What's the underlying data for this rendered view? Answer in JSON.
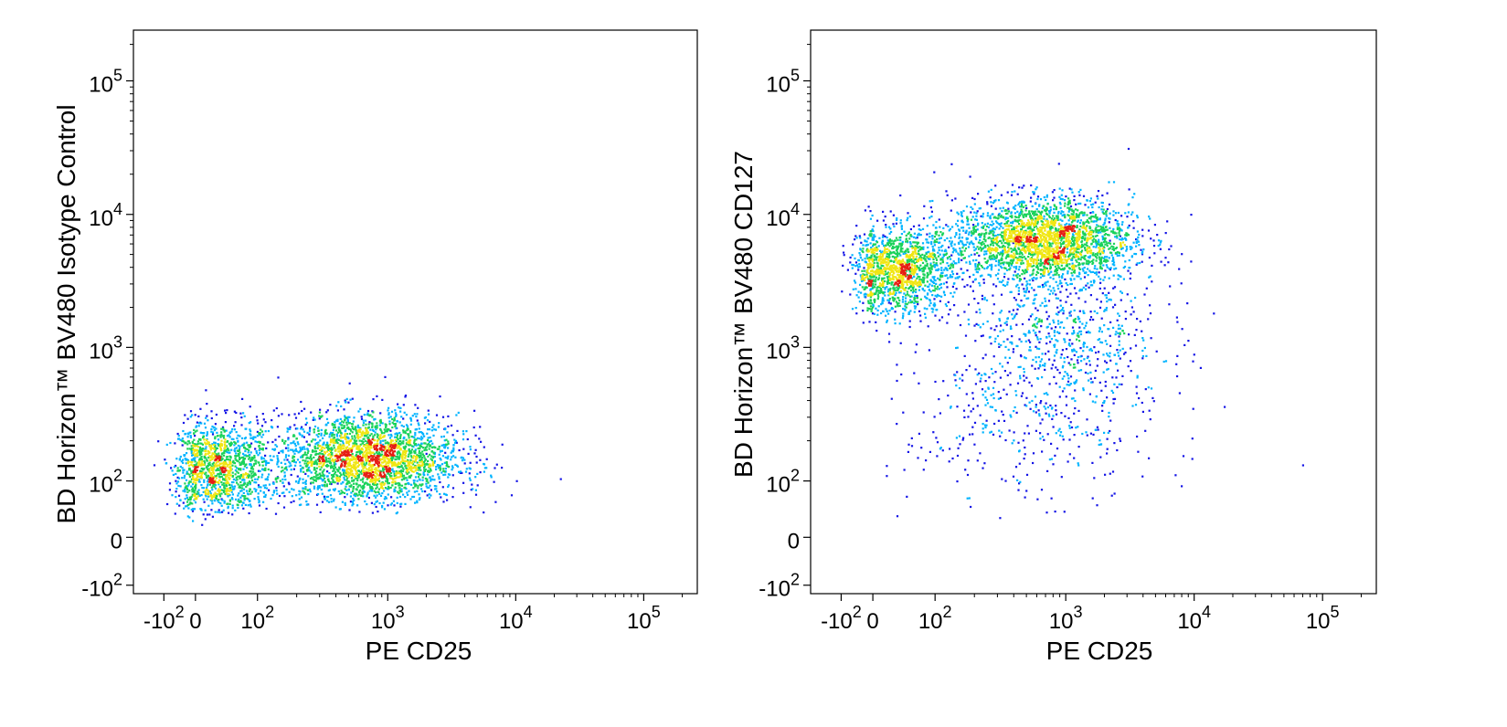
{
  "colors": {
    "density_low": "#1414e6",
    "density_mid_low": "#00b4ff",
    "density_mid": "#19d25a",
    "density_mid_high": "#f0e614",
    "density_high": "#e61e14",
    "axis": "#000000",
    "background": "#ffffff"
  },
  "chart_data": [
    {
      "type": "scatter",
      "style": "flow cytometry pseudocolor density plot",
      "xlabel": "PE  CD25",
      "ylabel": "BD Horizon™ BV480 Isotype Control",
      "x_scale": "biexponential",
      "y_scale": "biexponential",
      "xlim": [
        -200,
        262144
      ],
      "ylim": [
        -150,
        262144
      ],
      "x_ticks": [
        {
          "value": -100,
          "base": "-10",
          "exp": "2"
        },
        {
          "value": 0,
          "base": "0",
          "exp": ""
        },
        {
          "value": 100,
          "base": "10",
          "exp": "2"
        },
        {
          "value": 1000,
          "base": "10",
          "exp": "3"
        },
        {
          "value": 10000,
          "base": "10",
          "exp": "4"
        },
        {
          "value": 100000,
          "base": "10",
          "exp": "5"
        }
      ],
      "y_ticks": [
        {
          "value": -100,
          "base": "-10",
          "exp": "2"
        },
        {
          "value": 0,
          "base": "0",
          "exp": ""
        },
        {
          "value": 100,
          "base": "10",
          "exp": "2"
        },
        {
          "value": 1000,
          "base": "10",
          "exp": "3"
        },
        {
          "value": 10000,
          "base": "10",
          "exp": "4"
        },
        {
          "value": 100000,
          "base": "10",
          "exp": "5"
        }
      ],
      "populations": [
        {
          "name": "",
          "x_center": 35,
          "y_center": 125,
          "x_spread": 45,
          "y_spread": 0.18,
          "density": "high",
          "count": 1300
        },
        {
          "name": "",
          "x_center": 700,
          "y_center": 150,
          "x_spread": 0.35,
          "y_spread": 0.17,
          "density": "high",
          "count": 2600
        }
      ],
      "grid": false,
      "legend": "none"
    },
    {
      "type": "scatter",
      "style": "flow cytometry pseudocolor density plot",
      "xlabel": "PE  CD25",
      "ylabel": "BD Horizon™ BV480 CD127",
      "x_scale": "biexponential",
      "y_scale": "biexponential",
      "xlim": [
        -200,
        262144
      ],
      "ylim": [
        -150,
        262144
      ],
      "x_ticks": [
        {
          "value": -100,
          "base": "-10",
          "exp": "2"
        },
        {
          "value": 0,
          "base": "0",
          "exp": ""
        },
        {
          "value": 100,
          "base": "10",
          "exp": "2"
        },
        {
          "value": 1000,
          "base": "10",
          "exp": "3"
        },
        {
          "value": 10000,
          "base": "10",
          "exp": "4"
        },
        {
          "value": 100000,
          "base": "10",
          "exp": "5"
        }
      ],
      "y_ticks": [
        {
          "value": -100,
          "base": "-10",
          "exp": "2"
        },
        {
          "value": 0,
          "base": "0",
          "exp": ""
        },
        {
          "value": 100,
          "base": "10",
          "exp": "2"
        },
        {
          "value": 1000,
          "base": "10",
          "exp": "3"
        },
        {
          "value": 10000,
          "base": "10",
          "exp": "4"
        },
        {
          "value": 100000,
          "base": "10",
          "exp": "5"
        }
      ],
      "populations": [
        {
          "name": "",
          "x_center": 40,
          "y_center": 3800,
          "x_spread": 45,
          "y_spread": 0.16,
          "density": "high",
          "count": 1400
        },
        {
          "name": "",
          "x_center": 650,
          "y_center": 6500,
          "x_spread": 0.35,
          "y_spread": 0.16,
          "density": "high",
          "count": 2500
        },
        {
          "name": "",
          "x_center": 900,
          "y_center": 1200,
          "x_spread": 0.4,
          "y_spread": 0.3,
          "density": "low",
          "count": 700
        },
        {
          "name": "",
          "x_center": 500,
          "y_center": 250,
          "x_spread": 0.5,
          "y_spread": 0.3,
          "density": "low",
          "count": 300
        }
      ],
      "grid": false,
      "legend": "none"
    }
  ]
}
